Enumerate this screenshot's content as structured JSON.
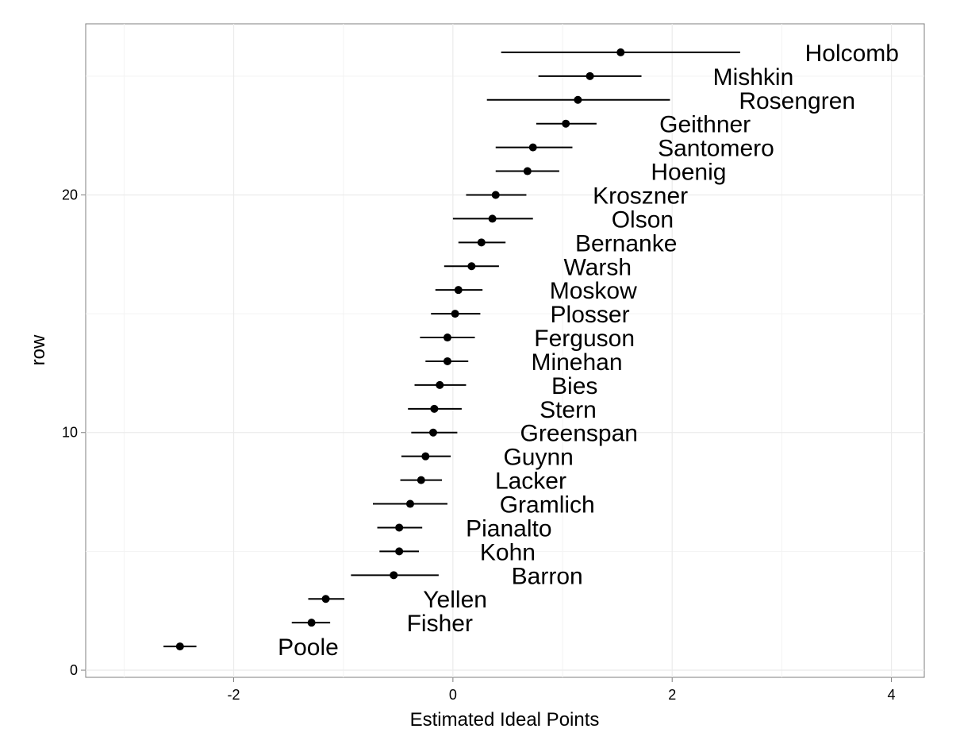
{
  "chart_data": {
    "type": "scatter",
    "subtype": "dot-with-interval",
    "title": "",
    "xlabel": "Estimated Ideal Points",
    "ylabel": "row",
    "xlim": [
      -3.35,
      4.3
    ],
    "ylim": [
      -0.3,
      27.2
    ],
    "x_ticks": [
      -2,
      0,
      2,
      4
    ],
    "y_ticks": [
      0,
      10,
      20
    ],
    "x_tick_labels": [
      "-2",
      "0",
      "2",
      "4"
    ],
    "y_tick_labels": [
      "0",
      "10",
      "20"
    ],
    "grid": true,
    "legend": "none",
    "colors": {
      "point": "#000000",
      "grid": "#ebebeb",
      "border": "#7f7f7f"
    },
    "points": [
      {
        "name": "Poole",
        "row": 1,
        "x": -2.49,
        "lo": -2.64,
        "hi": -2.34,
        "label_x": -1.32
      },
      {
        "name": "Fisher",
        "row": 2,
        "x": -1.29,
        "lo": -1.47,
        "hi": -1.12,
        "label_x": -0.12
      },
      {
        "name": "Yellen",
        "row": 3,
        "x": -1.16,
        "lo": -1.32,
        "hi": -0.99,
        "label_x": 0.02
      },
      {
        "name": "Barron",
        "row": 4,
        "x": -0.54,
        "lo": -0.93,
        "hi": -0.13,
        "label_x": 0.86
      },
      {
        "name": "Kohn",
        "row": 5,
        "x": -0.49,
        "lo": -0.67,
        "hi": -0.31,
        "label_x": 0.5
      },
      {
        "name": "Pianalto",
        "row": 6,
        "x": -0.49,
        "lo": -0.69,
        "hi": -0.28,
        "label_x": 0.51
      },
      {
        "name": "Gramlich",
        "row": 7,
        "x": -0.39,
        "lo": -0.73,
        "hi": -0.05,
        "label_x": 0.86
      },
      {
        "name": "Lacker",
        "row": 8,
        "x": -0.29,
        "lo": -0.48,
        "hi": -0.1,
        "label_x": 0.71
      },
      {
        "name": "Guynn",
        "row": 9,
        "x": -0.25,
        "lo": -0.47,
        "hi": -0.02,
        "label_x": 0.78
      },
      {
        "name": "Greenspan",
        "row": 10,
        "x": -0.18,
        "lo": -0.38,
        "hi": 0.04,
        "label_x": 1.15
      },
      {
        "name": "Stern",
        "row": 11,
        "x": -0.17,
        "lo": -0.41,
        "hi": 0.08,
        "label_x": 1.05
      },
      {
        "name": "Bies",
        "row": 12,
        "x": -0.12,
        "lo": -0.35,
        "hi": 0.12,
        "label_x": 1.11
      },
      {
        "name": "Minehan",
        "row": 13,
        "x": -0.05,
        "lo": -0.25,
        "hi": 0.14,
        "label_x": 1.13
      },
      {
        "name": "Ferguson",
        "row": 14,
        "x": -0.05,
        "lo": -0.3,
        "hi": 0.2,
        "label_x": 1.2
      },
      {
        "name": "Plosser",
        "row": 15,
        "x": 0.02,
        "lo": -0.2,
        "hi": 0.25,
        "label_x": 1.25
      },
      {
        "name": "Moskow",
        "row": 16,
        "x": 0.05,
        "lo": -0.16,
        "hi": 0.27,
        "label_x": 1.28
      },
      {
        "name": "Warsh",
        "row": 17,
        "x": 0.17,
        "lo": -0.08,
        "hi": 0.42,
        "label_x": 1.32
      },
      {
        "name": "Bernanke",
        "row": 18,
        "x": 0.26,
        "lo": 0.05,
        "hi": 0.48,
        "label_x": 1.58
      },
      {
        "name": "Olson",
        "row": 19,
        "x": 0.36,
        "lo": 0.0,
        "hi": 0.73,
        "label_x": 1.73
      },
      {
        "name": "Kroszner",
        "row": 20,
        "x": 0.39,
        "lo": 0.12,
        "hi": 0.67,
        "label_x": 1.71
      },
      {
        "name": "Hoenig",
        "row": 21,
        "x": 0.68,
        "lo": 0.39,
        "hi": 0.97,
        "label_x": 2.15
      },
      {
        "name": "Santomero",
        "row": 22,
        "x": 0.73,
        "lo": 0.39,
        "hi": 1.09,
        "label_x": 2.4
      },
      {
        "name": "Geithner",
        "row": 23,
        "x": 1.03,
        "lo": 0.76,
        "hi": 1.31,
        "label_x": 2.3
      },
      {
        "name": "Rosengren",
        "row": 24,
        "x": 1.14,
        "lo": 0.31,
        "hi": 1.98,
        "label_x": 3.14
      },
      {
        "name": "Mishkin",
        "row": 25,
        "x": 1.25,
        "lo": 0.78,
        "hi": 1.72,
        "label_x": 2.74
      },
      {
        "name": "Holcomb",
        "row": 26,
        "x": 1.53,
        "lo": 0.44,
        "hi": 2.62,
        "label_x": 3.64
      }
    ]
  }
}
